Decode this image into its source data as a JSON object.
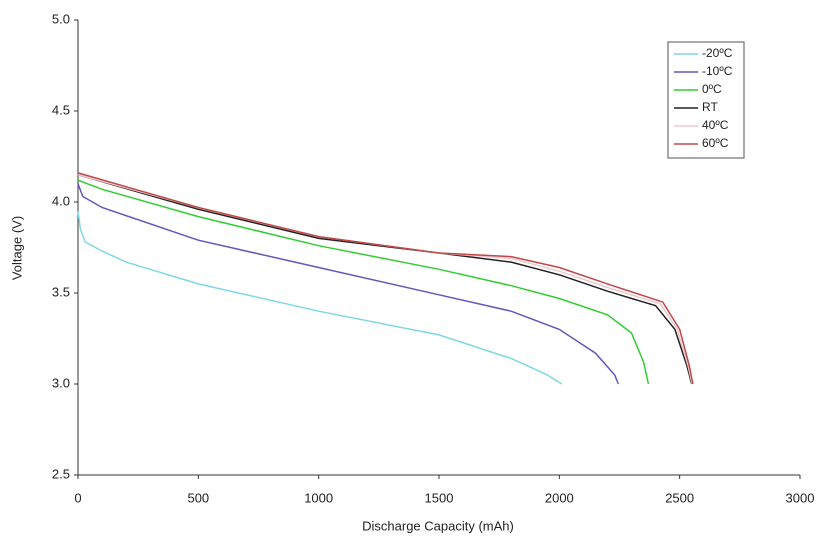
{
  "chart_data": {
    "type": "line",
    "x_label": "Discharge Capacity (mAh)",
    "y_label": "Voltage (V)",
    "xlim": [
      0,
      3000
    ],
    "xticks": [
      0,
      500,
      1000,
      1500,
      2000,
      2500,
      3000
    ],
    "ylim": [
      2.5,
      5
    ],
    "yticks": [
      2.5,
      {
        "value": 3,
        "label": "3.0"
      },
      3.5,
      {
        "value": 4,
        "label": "4.0"
      },
      4.5,
      {
        "value": 5,
        "label": "5.0"
      }
    ],
    "grid": false,
    "legend": "upper-right",
    "series": [
      {
        "name": "-20ºC",
        "color": "#7fd6e6",
        "x": [
          0,
          10,
          30,
          100,
          200,
          500,
          1000,
          1500,
          1800,
          1950,
          2010
        ],
        "values": [
          3.95,
          3.85,
          3.78,
          3.73,
          3.67,
          3.55,
          3.4,
          3.27,
          3.14,
          3.05,
          3.0
        ]
      },
      {
        "name": "-10ºC",
        "color": "#6655bb",
        "x": [
          0,
          20,
          100,
          500,
          1000,
          1500,
          1800,
          2000,
          2150,
          2230,
          2245
        ],
        "values": [
          4.1,
          4.03,
          3.97,
          3.79,
          3.64,
          3.49,
          3.4,
          3.3,
          3.17,
          3.05,
          3.0
        ]
      },
      {
        "name": "0ºC",
        "color": "#33cc33",
        "x": [
          0,
          100,
          500,
          1000,
          1500,
          1800,
          2000,
          2200,
          2300,
          2350,
          2370
        ],
        "values": [
          4.12,
          4.07,
          3.92,
          3.76,
          3.63,
          3.54,
          3.47,
          3.38,
          3.28,
          3.12,
          3.0
        ]
      },
      {
        "name": "RT",
        "color": "#222222",
        "x": [
          0,
          500,
          1000,
          1500,
          1800,
          2000,
          2200,
          2400,
          2480,
          2530,
          2550
        ],
        "values": [
          4.15,
          3.96,
          3.8,
          3.72,
          3.67,
          3.6,
          3.51,
          3.43,
          3.3,
          3.1,
          3.0
        ]
      },
      {
        "name": "40ºC",
        "color": "#f0c8d0",
        "x": [
          0,
          500,
          1000,
          1500,
          1800,
          2000,
          2200,
          2420,
          2490,
          2535,
          2552
        ],
        "values": [
          4.15,
          3.97,
          3.81,
          3.72,
          3.69,
          3.62,
          3.53,
          3.44,
          3.3,
          3.1,
          3.0
        ]
      },
      {
        "name": "60ºC",
        "color": "#c04848",
        "x": [
          0,
          500,
          1000,
          1500,
          1800,
          2000,
          2200,
          2430,
          2500,
          2540,
          2555
        ],
        "values": [
          4.16,
          3.97,
          3.81,
          3.72,
          3.7,
          3.64,
          3.55,
          3.45,
          3.3,
          3.1,
          3.0
        ]
      }
    ]
  }
}
